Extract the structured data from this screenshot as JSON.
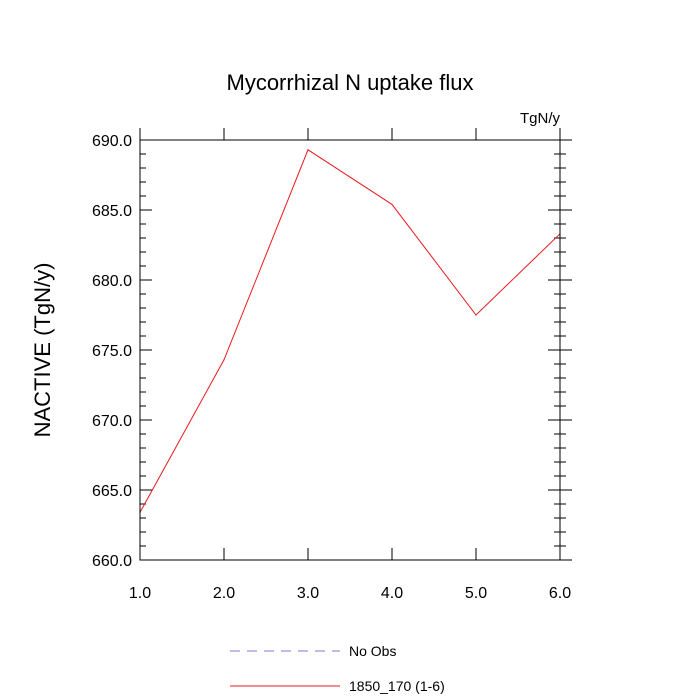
{
  "chart_data": {
    "type": "line",
    "title": "Mycorrhizal N uptake flux",
    "units_label": "TgN/y",
    "xlabel": "",
    "ylabel": "NACTIVE  (TgN/y)",
    "xlim": [
      1.0,
      6.0
    ],
    "ylim": [
      660.0,
      690.0
    ],
    "x_ticks": [
      "1.0",
      "2.0",
      "3.0",
      "4.0",
      "5.0",
      "6.0"
    ],
    "y_ticks": [
      "660.0",
      "665.0",
      "670.0",
      "675.0",
      "680.0",
      "685.0",
      "690.0"
    ],
    "grid": false,
    "legend_position": "bottom",
    "series": [
      {
        "name": "1850_170 (1-6)",
        "color": "#e8191d",
        "x": [
          1,
          2,
          3,
          4,
          5,
          6
        ],
        "values": [
          663.4,
          674.3,
          689.3,
          685.4,
          677.5,
          683.3
        ]
      }
    ],
    "legend": [
      {
        "label": "No Obs",
        "color": "#7b7bd6",
        "style": "dashed"
      },
      {
        "label": "1850_170 (1-6)",
        "color": "#e8191d",
        "style": "solid"
      }
    ]
  }
}
